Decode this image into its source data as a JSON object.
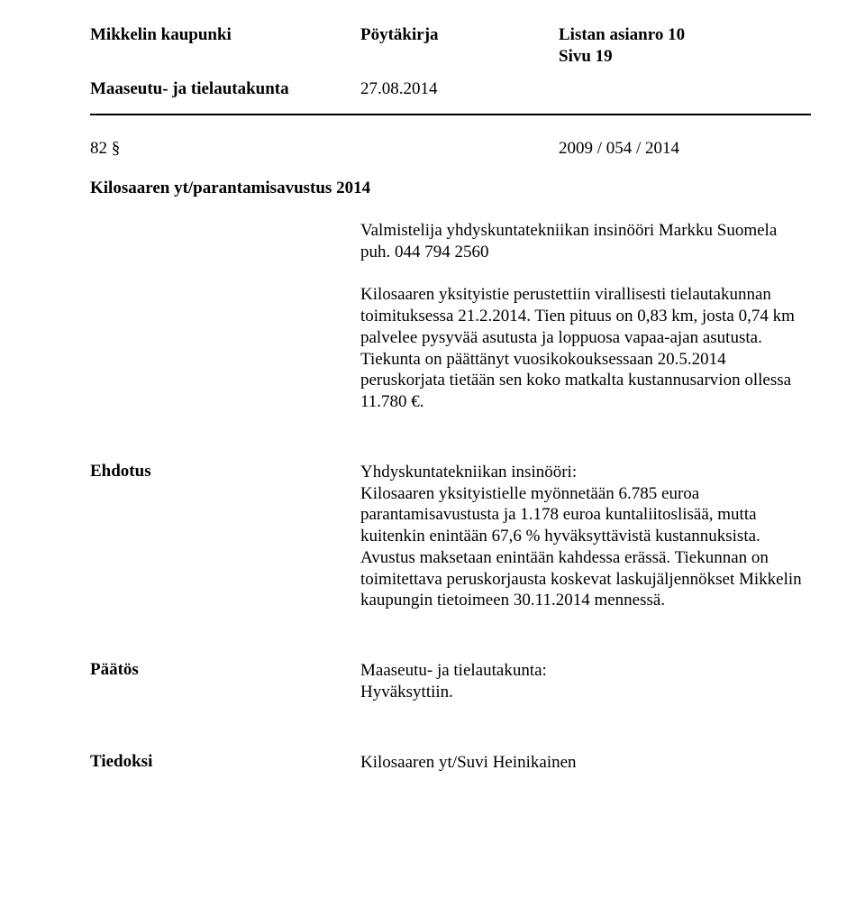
{
  "header": {
    "org": "Mikkelin kaupunki",
    "docType": "Pöytäkirja",
    "listRef": "Listan asianro 10",
    "pageLabel": "Sivu 19",
    "committee": "Maaseutu- ja tielautakunta",
    "date": "27.08.2014"
  },
  "section": {
    "number": "82 §",
    "caseNumber": "2009 / 054 / 2014",
    "title": "Kilosaaren yt/parantamisavustus 2014"
  },
  "body": {
    "paragraph": "Valmistelija yhdyskuntatekniikan insinööri Markku Suomela puh. 044 794 2560\n\nKilosaaren yksityistie perustettiin virallisesti tielautakunnan toimituksessa 21.2.2014. Tien pituus on 0,83 km, josta 0,74 km palvelee pysyvää asutusta ja loppuosa vapaa-ajan asutusta. Tiekunta on päättänyt vuosikokouksessaan 20.5.2014 peruskorjata tietään sen koko matkalta kustannusarvion ollessa 11.780 €."
  },
  "proposal": {
    "label": "Ehdotus",
    "text": "Yhdyskuntatekniikan insinööri:\nKilosaaren yksityistielle myönnetään 6.785 euroa parantamisavustusta ja 1.178 euroa kuntaliitoslisää, mutta kuitenkin enintään 67,6 % hyväksyttävistä kustannuksista. Avustus maksetaan enintään kahdessa erässä. Tiekunnan on toimitettava peruskorjausta koskevat laskujäljennökset Mikkelin kaupungin tietoimeen 30.11.2014 mennessä."
  },
  "decision": {
    "label": "Päätös",
    "text": "Maaseutu- ja tielautakunta:\nHyväksyttiin."
  },
  "info": {
    "label": "Tiedoksi",
    "text": "Kilosaaren yt/Suvi Heinikainen"
  }
}
